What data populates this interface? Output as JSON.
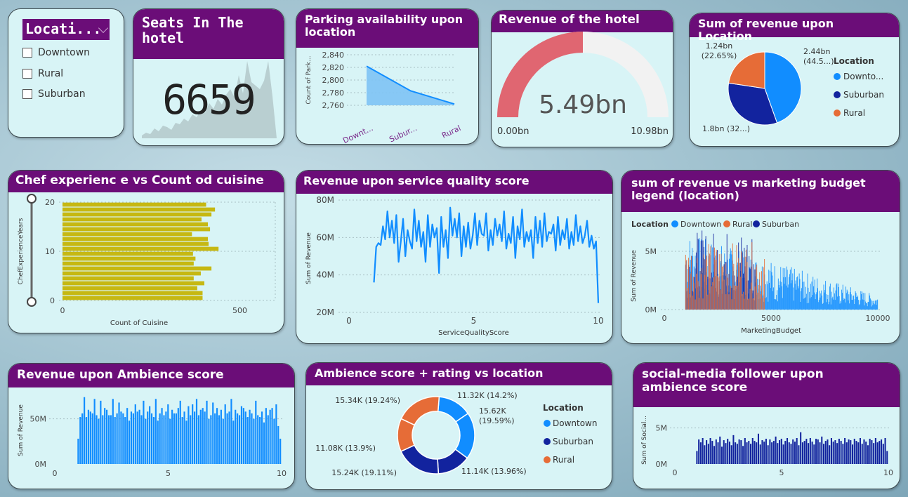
{
  "slicer": {
    "title": "Locati...",
    "options": [
      "Downtown",
      "Rural",
      "Suburban"
    ]
  },
  "seats": {
    "title": "Seats In The hotel",
    "value": "6659"
  },
  "parking": {
    "title": "Parking availability upon location",
    "ylabel": "Count of Park...",
    "yticks": [
      "2,840",
      "2,820",
      "2,800",
      "2,780",
      "2,760"
    ],
    "xlabels": [
      "Downt...",
      "Subur...",
      "Rural"
    ],
    "chart_data": {
      "type": "area",
      "categories": [
        "Downtown",
        "Suburban",
        "Rural"
      ],
      "values": [
        2822,
        2783,
        2762
      ],
      "ylim": [
        2760,
        2840
      ]
    }
  },
  "gauge": {
    "title": "Revenue of the hotel",
    "value_label": "5.49bn",
    "min_label": "0.00bn",
    "max_label": "10.98bn",
    "chart_data": {
      "type": "gauge",
      "value": 5.49,
      "min": 0,
      "max": 10.98
    }
  },
  "pie": {
    "title": "Sum of revenue upon Location",
    "legend_title": "Location",
    "legend": [
      "Downto...",
      "Suburban",
      "Rural"
    ],
    "labels": [
      "2.44bn (44.5...)",
      "1.8bn (32...)",
      "1.24bn (22.65%)"
    ],
    "colors": [
      "#118dff",
      "#12239e",
      "#e66c37"
    ],
    "chart_data": {
      "type": "pie",
      "categories": [
        "Downtown",
        "Suburban",
        "Rural"
      ],
      "values": [
        2.44,
        1.8,
        1.24
      ]
    }
  },
  "chef": {
    "title": "Chef experienc e vs Count od cuisine",
    "ylabel": "ChefExperienceYears",
    "xlabel": "Count of Cuisine",
    "yticks": [
      "20",
      "10",
      "0"
    ],
    "xticks": [
      "0",
      "500"
    ],
    "chart_data": {
      "type": "bar",
      "orientation": "horizontal",
      "categories": [
        20,
        19,
        18,
        17,
        16,
        15,
        14,
        13,
        12,
        11,
        10,
        9,
        8,
        7,
        6,
        5,
        4,
        3,
        2,
        1
      ],
      "values": [
        405,
        430,
        420,
        392,
        410,
        416,
        365,
        410,
        412,
        440,
        368,
        375,
        370,
        420,
        390,
        370,
        400,
        380,
        395,
        395
      ],
      "xlim": [
        0,
        600
      ]
    }
  },
  "service": {
    "title": "Revenue upon service quality score",
    "ylabel": "Sum of Revenue",
    "xlabel": "ServiceQualityScore",
    "yticks": [
      "80M",
      "60M",
      "40M",
      "20M"
    ],
    "xticks": [
      "0",
      "5",
      "10"
    ],
    "chart_data": {
      "type": "line",
      "x_range": [
        1,
        10
      ],
      "values": [
        36,
        55,
        57,
        56,
        66,
        59,
        74,
        60,
        69,
        57,
        72,
        47,
        58,
        70,
        50,
        64,
        58,
        54,
        75,
        58,
        69,
        55,
        63,
        47,
        72,
        55,
        67,
        60,
        65,
        41,
        71,
        55,
        64,
        49,
        76,
        61,
        70,
        60,
        73,
        50,
        66,
        55,
        68,
        54,
        61,
        73,
        56,
        69,
        62,
        61,
        73,
        53,
        64,
        56,
        70,
        61,
        67,
        58,
        74,
        54,
        62,
        57,
        71,
        49,
        66,
        59,
        75,
        55,
        63,
        58,
        64,
        49,
        71,
        57,
        69,
        55,
        73,
        58,
        63,
        62,
        67,
        53,
        71,
        56,
        64,
        59,
        70,
        54,
        63,
        56,
        72,
        58,
        66,
        57,
        61,
        69,
        55,
        61,
        54,
        58,
        25
      ],
      "ylim": [
        20,
        80
      ]
    }
  },
  "marketing": {
    "title": "sum of revenue vs marketing budget legend (location)",
    "legend_title": "Location",
    "legend": [
      "Downtown",
      "Rural",
      "Suburban"
    ],
    "ylabel": "Sum of Revenue",
    "xlabel": "MarketingBudget",
    "yticks": [
      "5M",
      "0M"
    ],
    "xticks": [
      "0",
      "5000",
      "10000"
    ],
    "chart_data": {
      "type": "bar",
      "x_range": [
        1000,
        10000
      ],
      "ylim": [
        0,
        6
      ],
      "series": [
        {
          "name": "Downtown",
          "x_range": [
            1000,
            10000
          ],
          "peak": 5.2
        },
        {
          "name": "Rural",
          "x_range": [
            1000,
            4700
          ],
          "peak": 4.5
        },
        {
          "name": "Suburban",
          "x_range": [
            1000,
            4300
          ],
          "peak": 5.3
        }
      ]
    }
  },
  "ambience": {
    "title": "Revenue upon Ambience score",
    "ylabel": "Sum of Revenue",
    "yticks": [
      "50M",
      "0M"
    ],
    "xticks": [
      "0",
      "5",
      "10"
    ],
    "chart_data": {
      "type": "bar",
      "x_range": [
        1,
        10
      ],
      "ylim": [
        0,
        80
      ],
      "values": [
        28,
        52,
        56,
        74,
        52,
        60,
        58,
        56,
        72,
        54,
        50,
        70,
        54,
        62,
        60,
        54,
        54,
        72,
        52,
        56,
        68,
        58,
        56,
        52,
        62,
        48,
        58,
        56,
        66,
        58,
        60,
        54,
        70,
        50,
        58,
        64,
        56,
        52,
        72,
        48,
        56,
        62,
        54,
        58,
        66,
        50,
        60,
        56,
        56,
        62,
        70,
        52,
        58,
        48,
        64,
        54,
        66,
        58,
        72,
        54,
        60,
        62,
        58,
        70,
        50,
        54,
        68,
        56,
        62,
        54,
        60,
        50,
        66,
        56,
        58,
        72,
        48,
        60,
        56,
        54,
        64,
        62,
        58,
        52,
        60,
        56,
        50,
        70,
        54,
        52,
        58,
        46,
        62,
        54,
        60,
        62,
        50,
        66,
        42,
        28
      ]
    }
  },
  "donut": {
    "title": "Ambience score + rating vs location",
    "legend_title": "Location",
    "legend": [
      "Downtown",
      "Suburban",
      "Rural"
    ],
    "colors": [
      "#118dff",
      "#118dff",
      "#12239e",
      "#12239e",
      "#e66c37",
      "#e66c37"
    ],
    "labels": [
      "11.32K (14.2%)",
      "15.62K (19.59%)",
      "11.14K (13.96%)",
      "15.24K (19.11%)",
      "11.08K (13.9%)",
      "15.34K (19.24%)"
    ],
    "chart_data": {
      "type": "pie",
      "donut": true,
      "values": [
        11.32,
        15.62,
        11.14,
        15.24,
        11.08,
        15.34
      ]
    }
  },
  "social": {
    "title": "social-media follower upon ambience score",
    "ylabel": "Sum of Social...",
    "yticks": [
      "5M",
      "0M"
    ],
    "xticks": [
      "0",
      "5",
      "10"
    ],
    "chart_data": {
      "type": "bar",
      "x_range": [
        1,
        10
      ],
      "ylim": [
        0,
        7
      ],
      "values": [
        1.8,
        3.4,
        3.0,
        3.6,
        2.6,
        3.3,
        2.8,
        3.6,
        3.2,
        2.5,
        3.4,
        3.0,
        3.8,
        2.4,
        3.3,
        2.9,
        3.5,
        3.1,
        2.6,
        4.0,
        3.0,
        2.8,
        3.4,
        3.3,
        2.5,
        3.6,
        3.0,
        3.2,
        2.8,
        3.6,
        3.2,
        3.0,
        4.2,
        2.7,
        3.3,
        3.1,
        3.5,
        2.6,
        3.4,
        3.0,
        3.2,
        3.8,
        2.9,
        3.3,
        3.5,
        2.7,
        3.2,
        3.6,
        3.0,
        2.8,
        3.4,
        3.1,
        3.6,
        2.6,
        4.4,
        3.0,
        3.2,
        3.5,
        2.9,
        3.6,
        3.1,
        2.7,
        3.5,
        3.4,
        3.0,
        3.8,
        2.8,
        3.2,
        3.4,
        2.6,
        3.6,
        3.1,
        3.3,
        2.9,
        3.5,
        3.2,
        2.8,
        3.6,
        3.0,
        3.4,
        3.3,
        2.7,
        3.5,
        3.2,
        3.0,
        3.6,
        2.8,
        3.4,
        3.1,
        2.6,
        3.5,
        3.3,
        2.9,
        3.6,
        3.0,
        3.2,
        3.4,
        2.8,
        3.6,
        1.8
      ]
    }
  }
}
